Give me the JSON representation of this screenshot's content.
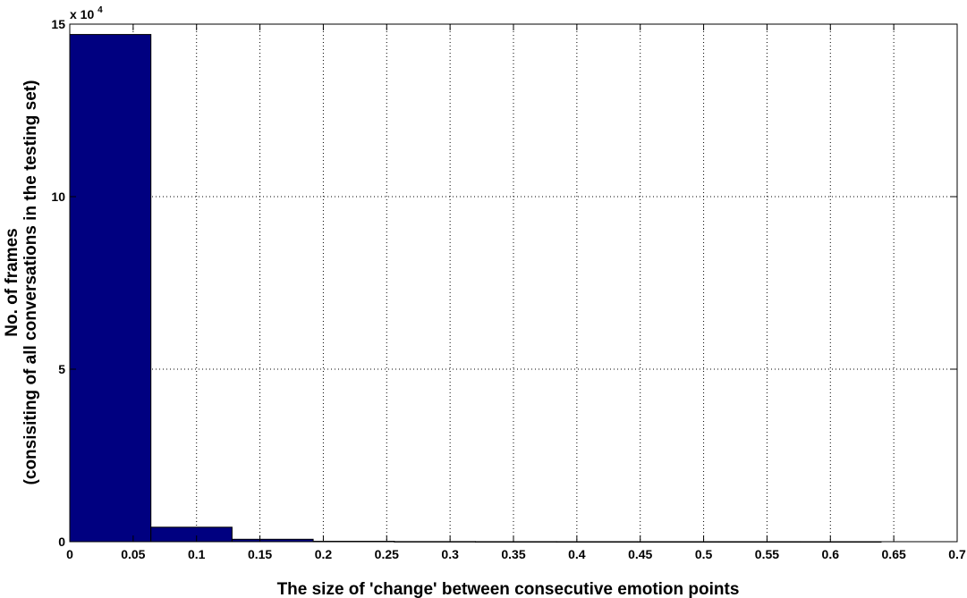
{
  "chart_data": {
    "type": "bar",
    "title": "",
    "xlabel": "The size of 'change' between consecutive emotion points",
    "ylabel_line1": "No. of frames",
    "ylabel_line2": "(consisiting of all conversations in the testing set)",
    "y_multiplier_text": "x 10",
    "y_multiplier_exponent": "4",
    "xlim": [
      0,
      0.7
    ],
    "ylim": [
      0,
      150000
    ],
    "x_ticks": [
      0,
      0.05,
      0.1,
      0.15,
      0.2,
      0.25,
      0.3,
      0.35,
      0.4,
      0.45,
      0.5,
      0.55,
      0.6,
      0.65,
      0.7
    ],
    "x_tick_labels": [
      "0",
      "0.05",
      "0.1",
      "0.15",
      "0.2",
      "0.25",
      "0.3",
      "0.35",
      "0.4",
      "0.45",
      "0.5",
      "0.55",
      "0.6",
      "0.65",
      "0.7"
    ],
    "y_ticks": [
      0,
      50000,
      100000,
      150000
    ],
    "y_tick_labels": [
      "0",
      "5",
      "10",
      "15"
    ],
    "bin_edges": [
      0,
      0.064,
      0.128,
      0.192,
      0.256,
      0.32,
      0.384,
      0.448,
      0.512,
      0.576,
      0.64
    ],
    "values": [
      147000,
      4200,
      700,
      120,
      40,
      15,
      8,
      5,
      3,
      2
    ],
    "bar_color": "#000080",
    "bar_edge_color": "#000000",
    "grid": true
  }
}
